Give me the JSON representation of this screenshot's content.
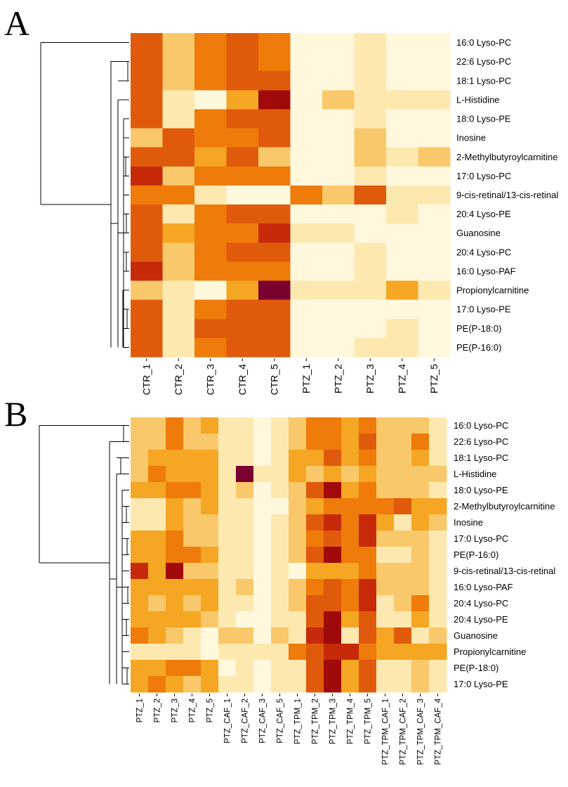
{
  "figure": {
    "panels": [
      {
        "id": "A",
        "letter": "A"
      },
      {
        "id": "B",
        "letter": "B"
      }
    ]
  },
  "colors": {
    "scale": [
      "#fff8dc",
      "#fde9b0",
      "#f9c86a",
      "#f5a623",
      "#ee7b0a",
      "#e05a0c",
      "#c62a0a",
      "#a00a0a",
      "#7a0030"
    ]
  },
  "chart_data": [
    {
      "type": "heatmap",
      "panel": "A",
      "title": "",
      "color_scale_note": "0 = light cream (low) to 8 = dark maroon (high); relative intensity levels",
      "rows": [
        "16:0 Lyso-PC",
        "22:6 Lyso-PC",
        "18:1 Lyso-PC",
        "L-Histidine",
        "18:0 Lyso-PE",
        "Inosine",
        "2-Methylbutyroylcarnitine",
        "17:0 Lyso-PC",
        "9-cis-retinal/13-cis-retinal",
        "20:4 Lyso-PE",
        "Guanosine",
        "20:4 Lyso-PC",
        "16:0 Lyso-PAF",
        "Propionylcarnitine",
        "17:0 Lyso-PE",
        "PE(P-18:0)",
        "PE(P-16:0)"
      ],
      "columns": [
        "CTR_1",
        "CTR_2",
        "CTR_3",
        "CTR_4",
        "CTR_5",
        "PTZ_1",
        "PTZ_2",
        "PTZ_3",
        "PTZ_4",
        "PTZ_5"
      ],
      "values": [
        [
          5,
          2,
          4,
          5,
          4,
          0,
          0,
          1,
          0,
          0
        ],
        [
          5,
          2,
          4,
          5,
          4,
          0,
          0,
          1,
          0,
          0
        ],
        [
          5,
          2,
          4,
          5,
          5,
          0,
          0,
          1,
          0,
          0
        ],
        [
          5,
          1,
          0,
          3,
          7,
          0,
          2,
          1,
          1,
          1
        ],
        [
          5,
          1,
          4,
          5,
          5,
          0,
          0,
          1,
          0,
          0
        ],
        [
          2,
          5,
          4,
          4,
          5,
          0,
          0,
          2,
          0,
          0
        ],
        [
          5,
          5,
          3,
          5,
          2,
          0,
          0,
          2,
          1,
          2
        ],
        [
          6,
          2,
          4,
          4,
          4,
          0,
          0,
          1,
          0,
          0
        ],
        [
          4,
          4,
          1,
          0,
          0,
          4,
          2,
          5,
          1,
          1
        ],
        [
          5,
          1,
          4,
          5,
          5,
          0,
          0,
          0,
          1,
          0
        ],
        [
          5,
          3,
          4,
          4,
          6,
          1,
          1,
          0,
          0,
          0
        ],
        [
          5,
          2,
          4,
          5,
          5,
          0,
          0,
          1,
          0,
          0
        ],
        [
          6,
          2,
          4,
          4,
          4,
          0,
          0,
          1,
          0,
          0
        ],
        [
          2,
          1,
          0,
          3,
          8,
          1,
          1,
          1,
          3,
          1
        ],
        [
          5,
          1,
          4,
          5,
          5,
          0,
          0,
          0,
          0,
          0
        ],
        [
          5,
          1,
          5,
          5,
          5,
          0,
          0,
          0,
          1,
          0
        ],
        [
          5,
          1,
          4,
          5,
          5,
          0,
          0,
          1,
          1,
          0
        ]
      ],
      "dendrogram": "row clustering on the left"
    },
    {
      "type": "heatmap",
      "panel": "B",
      "title": "",
      "color_scale_note": "0 = light cream (low) to 8 = dark maroon (high); relative intensity levels",
      "rows": [
        "16:0 Lyso-PC",
        "22:6 Lyso-PC",
        "18:1 Lyso-PC",
        "L-Histidine",
        "18:0 Lyso-PE",
        "2-Methylbutyroylcarnitine",
        "Inosine",
        "17:0 Lyso-PC",
        "PE(P-16:0)",
        "9-cis-retinal/13-cis-retinal",
        "16:0 Lyso-PAF",
        "20:4 Lyso-PC",
        "20:4 Lyso-PE",
        "Guanosine",
        "Propionylcarnitine",
        "PE(P-18:0)",
        "17:0 Lyso-PE"
      ],
      "columns": [
        "PTZ_1",
        "PTZ_2",
        "PTZ_3",
        "PTZ_4",
        "PTZ_5",
        "PTZ_CAF_1",
        "PTZ_CAF_2",
        "PTZ_CAF_3",
        "PTZ_CAF_5",
        "PTZ_TPM_1",
        "PTZ_TPM_2",
        "PTZ_TPM_3",
        "PTZ_TPM_4",
        "PTZ_TPM_5",
        "PTZ_TPM_CAF_1",
        "PTZ_TPM_CAF_2",
        "PTZ_TPM_CAF_3",
        "PTZ_TPM_CAF_4"
      ],
      "values": [
        [
          2,
          2,
          4,
          2,
          3,
          1,
          1,
          0,
          1,
          2,
          4,
          4,
          3,
          4,
          2,
          2,
          2,
          1
        ],
        [
          2,
          2,
          4,
          2,
          2,
          1,
          1,
          0,
          1,
          2,
          4,
          4,
          3,
          5,
          2,
          2,
          4,
          1
        ],
        [
          2,
          3,
          3,
          3,
          3,
          1,
          1,
          0,
          1,
          3,
          3,
          5,
          3,
          4,
          2,
          2,
          3,
          1
        ],
        [
          2,
          4,
          3,
          3,
          3,
          1,
          8,
          1,
          1,
          3,
          2,
          3,
          2,
          3,
          2,
          2,
          2,
          2
        ],
        [
          3,
          3,
          4,
          4,
          3,
          1,
          2,
          0,
          1,
          2,
          5,
          7,
          3,
          4,
          2,
          2,
          2,
          1
        ],
        [
          1,
          1,
          3,
          2,
          3,
          1,
          1,
          0,
          0,
          2,
          3,
          4,
          4,
          4,
          4,
          5,
          3,
          3
        ],
        [
          1,
          1,
          3,
          2,
          2,
          1,
          1,
          0,
          1,
          2,
          5,
          6,
          4,
          6,
          3,
          1,
          3,
          2
        ],
        [
          3,
          3,
          4,
          2,
          2,
          1,
          1,
          0,
          1,
          2,
          4,
          5,
          4,
          6,
          2,
          2,
          2,
          1
        ],
        [
          3,
          3,
          4,
          4,
          3,
          1,
          1,
          0,
          1,
          2,
          5,
          7,
          4,
          4,
          1,
          1,
          2,
          1
        ],
        [
          6,
          3,
          7,
          2,
          2,
          1,
          1,
          0,
          1,
          0,
          3,
          3,
          3,
          4,
          2,
          2,
          2,
          1
        ],
        [
          3,
          3,
          3,
          3,
          3,
          1,
          2,
          0,
          1,
          2,
          4,
          5,
          4,
          6,
          2,
          2,
          2,
          1
        ],
        [
          3,
          2,
          3,
          2,
          3,
          1,
          1,
          0,
          1,
          2,
          5,
          5,
          4,
          6,
          1,
          2,
          4,
          1
        ],
        [
          3,
          3,
          3,
          3,
          2,
          1,
          0,
          0,
          1,
          1,
          5,
          7,
          3,
          5,
          1,
          1,
          3,
          1
        ],
        [
          4,
          3,
          2,
          1,
          0,
          2,
          2,
          0,
          2,
          1,
          6,
          7,
          1,
          5,
          3,
          5,
          1,
          2
        ],
        [
          1,
          1,
          1,
          1,
          0,
          1,
          1,
          1,
          1,
          4,
          5,
          6,
          6,
          4,
          3,
          3,
          3,
          3
        ],
        [
          3,
          3,
          4,
          4,
          3,
          0,
          1,
          0,
          1,
          1,
          5,
          7,
          3,
          5,
          1,
          1,
          2,
          1
        ],
        [
          3,
          4,
          3,
          2,
          3,
          1,
          1,
          0,
          1,
          1,
          5,
          7,
          3,
          5,
          1,
          1,
          2,
          1
        ]
      ],
      "dendrogram": "row clustering on the left"
    }
  ]
}
